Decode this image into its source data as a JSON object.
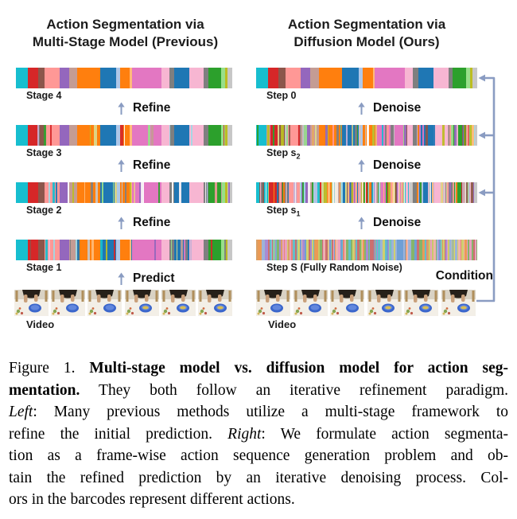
{
  "colors": {
    "arrow_blue": "#8a9cc2",
    "title_text": "#1c1c1c",
    "background": "#ffffff"
  },
  "figure": {
    "left_column": {
      "title_line1": "Action Segmentation via",
      "title_line2": "Multi-Stage Model (Previous)",
      "rows": [
        {
          "label": "Stage 4",
          "arrow_below": "Refine"
        },
        {
          "label": "Stage 3",
          "arrow_below": "Refine"
        },
        {
          "label": "Stage 2",
          "arrow_below": "Refine"
        },
        {
          "label": "Stage 1",
          "arrow_below": "Predict"
        }
      ],
      "video_label": "Video"
    },
    "right_column": {
      "title_line1": "Action Segmentation via",
      "title_line2": "Diffusion Model (Ours)",
      "rows": [
        {
          "label": "Step 0",
          "label_sub": "",
          "arrow_below": "Denoise"
        },
        {
          "label": "Step s",
          "label_sub": "2",
          "arrow_below": "Denoise"
        },
        {
          "label": "Step s",
          "label_sub": "1",
          "arrow_below": "Denoise"
        },
        {
          "label": "Step S (Fully Random Noise)",
          "label_sub": "",
          "arrow_below": ""
        }
      ],
      "video_label": "Video",
      "condition_label": "Condition"
    }
  },
  "barcodes": {
    "palette": [
      "#1f77b4",
      "#aec7e8",
      "#ff7f0e",
      "#ffbb78",
      "#2ca02c",
      "#98df8a",
      "#d62728",
      "#ff9896",
      "#9467bd",
      "#c5b0d5",
      "#8c564b",
      "#c49c94",
      "#e377c2",
      "#f7b6d2",
      "#7f7f7f",
      "#c7c7c7",
      "#bcbd22",
      "#dbdb8d",
      "#17becf",
      "#9edae5"
    ],
    "base_segments": [
      [
        "#17becf",
        5.9
      ],
      [
        "#d62728",
        5.1
      ],
      [
        "#8c564b",
        3.3
      ],
      [
        "#ff9896",
        7.4
      ],
      [
        "#9467bd",
        4.9
      ],
      [
        "#c49c94",
        4.0
      ],
      [
        "#ff7f0e",
        11.4
      ],
      [
        "#1f77b4",
        8.1
      ],
      [
        "#aec7e8",
        1.8
      ],
      [
        "#ff7f0e",
        5.1
      ],
      [
        "#ffbb78",
        1.1
      ],
      [
        "#e377c2",
        14.7
      ],
      [
        "#f7b6d2",
        3.7
      ],
      [
        "#7f7f7f",
        2.6
      ],
      [
        "#1f77b4",
        7.4
      ],
      [
        "#f7b6d2",
        7.4
      ],
      [
        "#7f7f7f",
        2.2
      ],
      [
        "#2ca02c",
        6.5
      ],
      [
        "#98df8a",
        1.8
      ],
      [
        "#bcbd22",
        1.2
      ],
      [
        "#c7c7c7",
        2.4
      ]
    ],
    "noise_palette": [
      "#e8837a",
      "#85b56a",
      "#6f9fd6",
      "#e8a0c0",
      "#eb9a55",
      "#62bfc9",
      "#a98bd3",
      "#cfd06e",
      "#cc6f6f",
      "#8fc9a4",
      "#f0b3ac",
      "#9db3d8",
      "#d9a066",
      "#c9c96a"
    ],
    "rows": [
      {
        "id": "stage4",
        "noise": 0,
        "seed": 101
      },
      {
        "id": "stage3",
        "noise": 14,
        "seed": 202
      },
      {
        "id": "stage2",
        "noise": 30,
        "seed": 303
      },
      {
        "id": "stage1",
        "noise": 22,
        "seed": 404
      },
      {
        "id": "step0",
        "noise": 0,
        "seed": 505
      },
      {
        "id": "steps2",
        "noise": 80,
        "seed": 606
      },
      {
        "id": "steps1",
        "noise": 170,
        "seed": 707
      },
      {
        "id": "stepS",
        "full_noise": true,
        "seed": 808
      }
    ]
  },
  "caption": {
    "lines": [
      [
        {
          "t": "Figure 1. ",
          "s": "n"
        },
        {
          "t": "Multi-stage model vs. diffusion model for action seg-",
          "s": "b"
        }
      ],
      [
        {
          "t": "mentation.",
          "s": "b"
        },
        {
          "t": " They both follow an iterative refinement paradigm.",
          "s": "n"
        }
      ],
      [
        {
          "t": "Left",
          "s": "i"
        },
        {
          "t": ": Many previous methods utilize a multi-stage framework to",
          "s": "n"
        }
      ],
      [
        {
          "t": "refine the initial prediction. ",
          "s": "n"
        },
        {
          "t": "Right",
          "s": "i"
        },
        {
          "t": ": We formulate action segmenta-",
          "s": "n"
        }
      ],
      [
        {
          "t": "tion as a frame-wise action sequence generation problem and ob-",
          "s": "n"
        }
      ],
      [
        {
          "t": "tain the refined prediction by an iterative denoising process. Col-",
          "s": "n"
        }
      ],
      [
        {
          "t": "ors in the barcodes represent different actions.",
          "s": "n"
        }
      ]
    ]
  }
}
